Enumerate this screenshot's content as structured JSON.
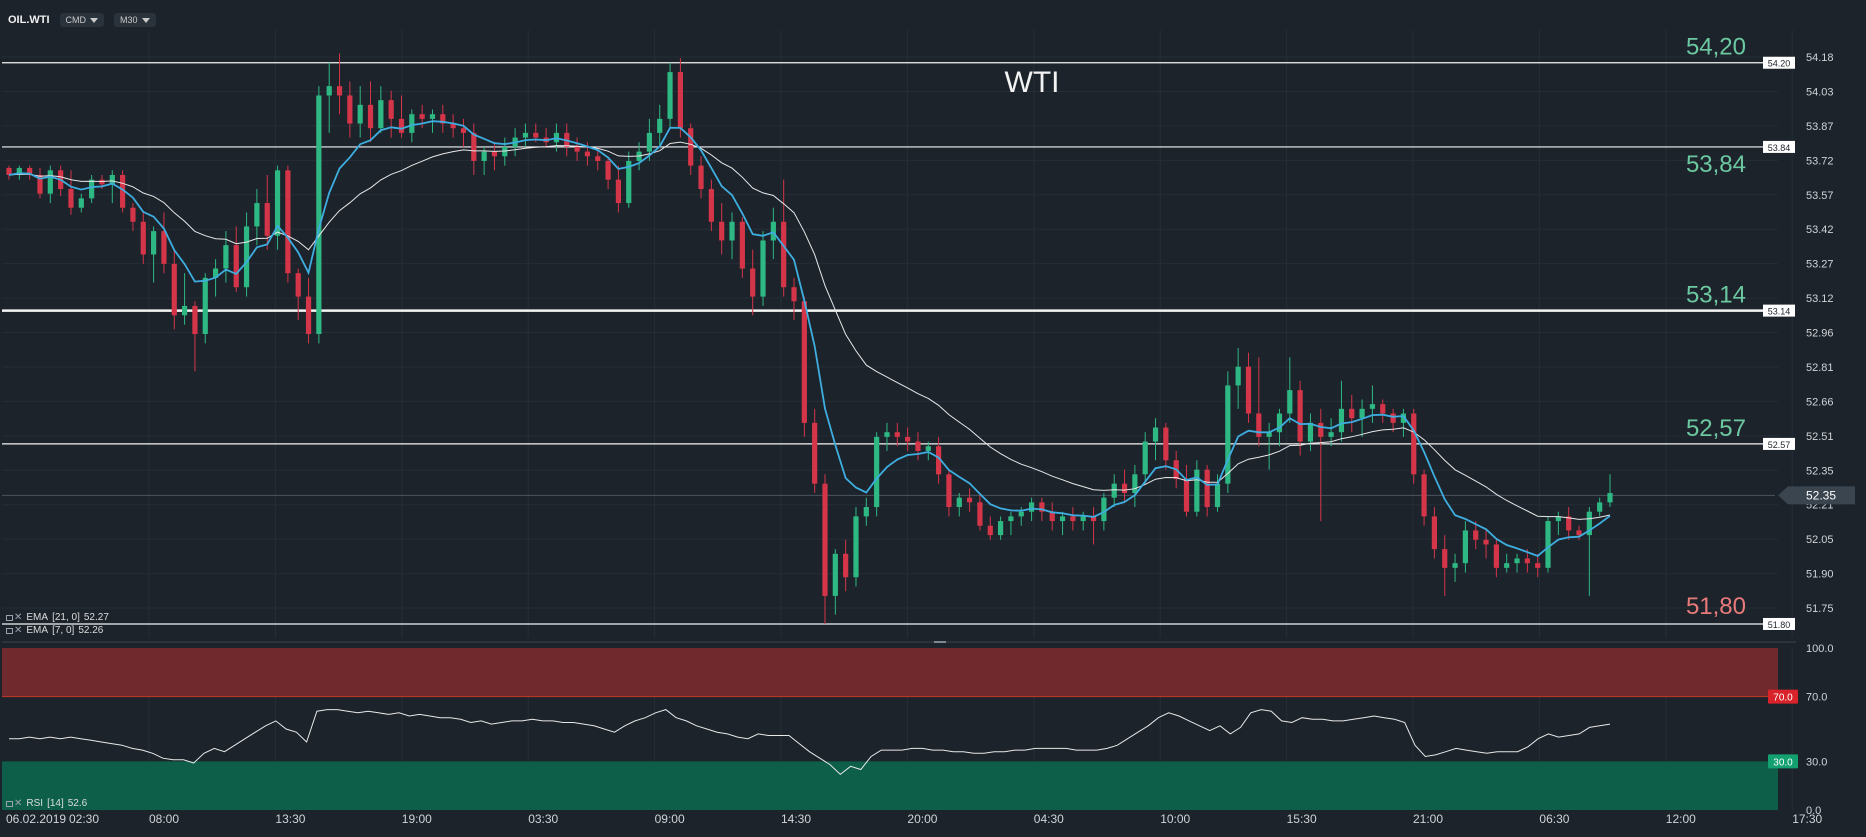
{
  "toolbar": {
    "symbol": "OIL.WTI",
    "mode": "CMD",
    "timeframe": "M30"
  },
  "legends": {
    "ema21": {
      "name": "EMA",
      "params": "[21, 0]",
      "value": "52.27"
    },
    "ema7": {
      "name": "EMA",
      "params": "[7, 0]",
      "value": "52.26"
    },
    "rsi": {
      "name": "RSI",
      "params": "[14]",
      "value": "52.6"
    }
  },
  "colors": {
    "background": "#1c232b",
    "bull": "#2eb883",
    "bear": "#d53548",
    "ema_fast": "#3eaee0",
    "ema_slow": "#e8e8e8",
    "level_label_green": "#6cc8a0",
    "level_label_red": "#e87a7a",
    "overbought_zone": "#7a2a2e",
    "oversold_zone": "#0e5f4a"
  },
  "chart_data": [
    {
      "type": "candlestick",
      "title": "WTI",
      "x_ticks": [
        "06.02.2019",
        "02:30",
        "08:00",
        "13:30",
        "19:00",
        "03:30",
        "09:00",
        "14:30",
        "20:00",
        "04:30",
        "10:00",
        "15:30",
        "21:00",
        "06:30",
        "12:00",
        "17:30"
      ],
      "y_ticks": [
        "54.18",
        "54.03",
        "53.87",
        "53.72",
        "53.57",
        "53.42",
        "53.27",
        "53.12",
        "52.96",
        "52.81",
        "52.66",
        "52.51",
        "52.35",
        "52.21",
        "52.05",
        "51.90",
        "51.75"
      ],
      "ylim": [
        51.74,
        54.34
      ],
      "current_price": "52.35",
      "levels": [
        {
          "value": 54.2,
          "axis_label": "54.20",
          "big_label": "54,20",
          "color": "green",
          "weight": "thin"
        },
        {
          "value": 53.84,
          "axis_label": "53.84",
          "big_label": "53,84",
          "color": "green",
          "weight": "thin"
        },
        {
          "value": 53.14,
          "axis_label": "53.14",
          "big_label": "53,14",
          "color": "green",
          "weight": "bold"
        },
        {
          "value": 52.57,
          "axis_label": "52.57",
          "big_label": "52,57",
          "color": "green",
          "weight": "thin"
        },
        {
          "value": 51.8,
          "axis_label": "51.80",
          "big_label": "51,80",
          "color": "red",
          "weight": "thin"
        }
      ],
      "candles": [
        [
          53.75,
          53.76,
          53.7,
          53.72
        ],
        [
          53.72,
          53.76,
          53.7,
          53.75
        ],
        [
          53.75,
          53.76,
          53.7,
          53.72
        ],
        [
          53.72,
          53.75,
          53.62,
          53.64
        ],
        [
          53.64,
          53.76,
          53.6,
          53.74
        ],
        [
          53.74,
          53.76,
          53.63,
          53.66
        ],
        [
          53.66,
          53.74,
          53.55,
          53.58
        ],
        [
          53.58,
          53.64,
          53.56,
          53.62
        ],
        [
          53.62,
          53.72,
          53.6,
          53.7
        ],
        [
          53.7,
          53.72,
          53.66,
          53.68
        ],
        [
          53.68,
          53.74,
          53.6,
          53.72
        ],
        [
          53.72,
          53.74,
          53.56,
          53.58
        ],
        [
          53.58,
          53.6,
          53.48,
          53.52
        ],
        [
          53.52,
          53.56,
          53.34,
          53.38
        ],
        [
          53.38,
          53.5,
          53.26,
          53.48
        ],
        [
          53.48,
          53.56,
          53.3,
          53.34
        ],
        [
          53.34,
          53.4,
          53.06,
          53.12
        ],
        [
          53.12,
          53.3,
          53.08,
          53.16
        ],
        [
          53.16,
          53.18,
          52.88,
          53.04
        ],
        [
          53.04,
          53.3,
          53.0,
          53.28
        ],
        [
          53.28,
          53.36,
          53.2,
          53.32
        ],
        [
          53.32,
          53.48,
          53.26,
          53.42
        ],
        [
          53.42,
          53.5,
          53.22,
          53.24
        ],
        [
          53.24,
          53.56,
          53.2,
          53.5
        ],
        [
          53.5,
          53.66,
          53.42,
          53.6
        ],
        [
          53.6,
          53.72,
          53.4,
          53.46
        ],
        [
          53.46,
          53.76,
          53.4,
          53.74
        ],
        [
          53.74,
          53.76,
          53.26,
          53.3
        ],
        [
          53.3,
          53.32,
          53.1,
          53.2
        ],
        [
          53.2,
          53.28,
          53.0,
          53.04
        ],
        [
          53.04,
          54.1,
          53.0,
          54.06
        ],
        [
          54.06,
          54.2,
          53.9,
          54.1
        ],
        [
          54.1,
          54.24,
          53.98,
          54.06
        ],
        [
          54.06,
          54.12,
          53.88,
          53.94
        ],
        [
          53.94,
          54.1,
          53.88,
          54.02
        ],
        [
          54.02,
          54.12,
          53.86,
          53.92
        ],
        [
          53.92,
          54.1,
          53.9,
          54.04
        ],
        [
          54.04,
          54.08,
          53.88,
          53.96
        ],
        [
          53.96,
          54.06,
          53.88,
          53.9
        ],
        [
          53.9,
          54.0,
          53.86,
          53.98
        ],
        [
          53.98,
          54.02,
          53.92,
          53.96
        ],
        [
          53.96,
          54.0,
          53.9,
          53.98
        ],
        [
          53.98,
          54.02,
          53.9,
          53.94
        ],
        [
          53.94,
          53.98,
          53.88,
          53.92
        ],
        [
          53.92,
          53.96,
          53.84,
          53.9
        ],
        [
          53.9,
          53.94,
          53.72,
          53.78
        ],
        [
          53.78,
          53.84,
          53.72,
          53.82
        ],
        [
          53.82,
          53.86,
          53.74,
          53.8
        ],
        [
          53.8,
          53.88,
          53.76,
          53.84
        ],
        [
          53.84,
          53.92,
          53.8,
          53.88
        ],
        [
          53.88,
          53.94,
          53.84,
          53.9
        ],
        [
          53.9,
          53.94,
          53.86,
          53.88
        ],
        [
          53.88,
          53.92,
          53.84,
          53.86
        ],
        [
          53.86,
          53.94,
          53.82,
          53.9
        ],
        [
          53.9,
          53.94,
          53.8,
          53.84
        ],
        [
          53.84,
          53.88,
          53.78,
          53.82
        ],
        [
          53.82,
          53.86,
          53.76,
          53.8
        ],
        [
          53.8,
          53.84,
          53.74,
          53.78
        ],
        [
          53.78,
          53.8,
          53.66,
          53.7
        ],
        [
          53.7,
          53.76,
          53.56,
          53.6
        ],
        [
          53.6,
          53.82,
          53.58,
          53.78
        ],
        [
          53.78,
          53.86,
          53.74,
          53.82
        ],
        [
          53.82,
          53.96,
          53.78,
          53.9
        ],
        [
          53.9,
          54.02,
          53.84,
          53.96
        ],
        [
          53.96,
          54.2,
          53.92,
          54.16
        ],
        [
          54.16,
          54.22,
          53.88,
          53.92
        ],
        [
          53.92,
          53.94,
          53.72,
          53.76
        ],
        [
          53.76,
          53.8,
          53.62,
          53.66
        ],
        [
          53.66,
          53.7,
          53.48,
          53.52
        ],
        [
          53.52,
          53.6,
          53.38,
          53.44
        ],
        [
          53.44,
          53.56,
          53.36,
          53.52
        ],
        [
          53.52,
          53.54,
          53.28,
          53.32
        ],
        [
          53.32,
          53.4,
          53.12,
          53.2
        ],
        [
          53.2,
          53.48,
          53.16,
          53.44
        ],
        [
          53.44,
          53.58,
          53.36,
          53.52
        ],
        [
          53.52,
          53.7,
          53.2,
          53.24
        ],
        [
          53.24,
          53.28,
          53.1,
          53.18
        ],
        [
          53.18,
          53.2,
          52.6,
          52.66
        ],
        [
          52.66,
          52.72,
          52.36,
          52.4
        ],
        [
          52.4,
          52.44,
          51.8,
          51.92
        ],
        [
          51.92,
          52.12,
          51.84,
          52.1
        ],
        [
          52.1,
          52.16,
          51.94,
          52.0
        ],
        [
          52.0,
          52.3,
          51.96,
          52.26
        ],
        [
          52.26,
          52.34,
          52.22,
          52.3
        ],
        [
          52.3,
          52.62,
          52.26,
          52.6
        ],
        [
          52.6,
          52.66,
          52.54,
          52.62
        ],
        [
          52.62,
          52.66,
          52.56,
          52.6
        ],
        [
          52.6,
          52.64,
          52.54,
          52.58
        ],
        [
          52.58,
          52.62,
          52.5,
          52.54
        ],
        [
          52.54,
          52.58,
          52.5,
          52.56
        ],
        [
          52.56,
          52.6,
          52.4,
          52.44
        ],
        [
          52.44,
          52.46,
          52.26,
          52.3
        ],
        [
          52.3,
          52.36,
          52.26,
          52.34
        ],
        [
          52.34,
          52.38,
          52.28,
          52.32
        ],
        [
          52.32,
          52.36,
          52.2,
          52.22
        ],
        [
          52.22,
          52.26,
          52.16,
          52.18
        ],
        [
          52.18,
          52.26,
          52.16,
          52.24
        ],
        [
          52.24,
          52.28,
          52.18,
          52.26
        ],
        [
          52.26,
          52.3,
          52.22,
          52.28
        ],
        [
          52.28,
          52.34,
          52.24,
          52.32
        ],
        [
          52.32,
          52.34,
          52.24,
          52.28
        ],
        [
          52.28,
          52.32,
          52.2,
          52.24
        ],
        [
          52.24,
          52.28,
          52.18,
          52.26
        ],
        [
          52.26,
          52.3,
          52.2,
          52.24
        ],
        [
          52.24,
          52.28,
          52.2,
          52.26
        ],
        [
          52.26,
          52.3,
          52.14,
          52.24
        ],
        [
          52.24,
          52.36,
          52.2,
          52.34
        ],
        [
          52.34,
          52.44,
          52.3,
          52.4
        ],
        [
          52.4,
          52.46,
          52.32,
          52.36
        ],
        [
          52.36,
          52.48,
          52.3,
          52.44
        ],
        [
          52.44,
          52.62,
          52.4,
          52.58
        ],
        [
          52.58,
          52.68,
          52.5,
          52.64
        ],
        [
          52.64,
          52.66,
          52.46,
          52.5
        ],
        [
          52.5,
          52.54,
          52.38,
          52.42
        ],
        [
          52.42,
          52.48,
          52.26,
          52.28
        ],
        [
          52.28,
          52.5,
          52.26,
          52.46
        ],
        [
          52.46,
          52.48,
          52.26,
          52.3
        ],
        [
          52.3,
          52.44,
          52.28,
          52.4
        ],
        [
          52.4,
          52.88,
          52.36,
          52.82
        ],
        [
          52.82,
          52.98,
          52.72,
          52.9
        ],
        [
          52.9,
          52.96,
          52.66,
          52.7
        ],
        [
          52.7,
          52.94,
          52.56,
          52.6
        ],
        [
          52.6,
          52.66,
          52.46,
          52.62
        ],
        [
          52.62,
          52.72,
          52.56,
          52.7
        ],
        [
          52.7,
          52.94,
          52.66,
          52.8
        ],
        [
          52.8,
          52.84,
          52.52,
          52.58
        ],
        [
          52.58,
          52.7,
          52.54,
          52.66
        ],
        [
          52.66,
          52.72,
          52.24,
          52.6
        ],
        [
          52.6,
          52.68,
          52.56,
          52.62
        ],
        [
          52.62,
          52.84,
          52.58,
          52.72
        ],
        [
          52.72,
          52.78,
          52.62,
          52.68
        ],
        [
          52.68,
          52.76,
          52.6,
          52.72
        ],
        [
          52.72,
          52.82,
          52.66,
          52.74
        ],
        [
          52.74,
          52.76,
          52.66,
          52.7
        ],
        [
          52.7,
          52.72,
          52.62,
          52.66
        ],
        [
          52.66,
          52.72,
          52.6,
          52.7
        ],
        [
          52.7,
          52.72,
          52.4,
          52.44
        ],
        [
          52.44,
          52.46,
          52.22,
          52.26
        ],
        [
          52.26,
          52.3,
          52.08,
          52.12
        ],
        [
          52.12,
          52.18,
          51.92,
          52.04
        ],
        [
          52.04,
          52.1,
          51.98,
          52.06
        ],
        [
          52.06,
          52.24,
          52.02,
          52.2
        ],
        [
          52.2,
          52.24,
          52.12,
          52.16
        ],
        [
          52.16,
          52.2,
          52.08,
          52.14
        ],
        [
          52.14,
          52.16,
          52.0,
          52.04
        ],
        [
          52.04,
          52.1,
          52.02,
          52.06
        ],
        [
          52.06,
          52.1,
          52.02,
          52.08
        ],
        [
          52.08,
          52.12,
          52.02,
          52.06
        ],
        [
          52.06,
          52.1,
          52.0,
          52.04
        ],
        [
          52.04,
          52.26,
          52.02,
          52.24
        ],
        [
          52.24,
          52.28,
          52.18,
          52.26
        ],
        [
          52.26,
          52.3,
          52.16,
          52.2
        ],
        [
          52.2,
          52.22,
          52.16,
          52.18
        ],
        [
          52.18,
          52.3,
          51.92,
          52.28
        ],
        [
          52.28,
          52.34,
          52.26,
          52.32
        ],
        [
          52.32,
          52.44,
          52.3,
          52.36
        ]
      ]
    },
    {
      "type": "line",
      "title": "",
      "ylim": [
        0,
        100
      ],
      "y_ticks": [
        "100.0",
        "70.0",
        "30.0",
        "0.0"
      ],
      "zones": {
        "overbought": 70.0,
        "oversold": 30.0
      },
      "overbought_label": "70.0",
      "oversold_label": "30.0",
      "rsi_values": [
        44,
        44,
        45,
        44,
        45,
        44,
        45,
        44,
        43,
        42,
        41,
        40,
        38,
        37,
        35,
        32,
        31,
        31,
        29,
        35,
        38,
        36,
        40,
        44,
        48,
        52,
        55,
        50,
        48,
        42,
        61,
        62,
        62,
        61,
        60,
        61,
        60,
        59,
        60,
        58,
        59,
        58,
        57,
        57,
        56,
        54,
        55,
        53,
        54,
        55,
        55,
        56,
        55,
        55,
        54,
        54,
        53,
        52,
        50,
        48,
        52,
        55,
        57,
        60,
        62,
        57,
        55,
        52,
        50,
        48,
        47,
        45,
        44,
        47,
        46,
        46,
        46,
        41,
        36,
        32,
        28,
        22,
        27,
        25,
        33,
        37,
        37,
        37,
        38,
        38,
        37,
        37,
        36,
        36,
        35,
        35,
        36,
        36,
        37,
        37,
        38,
        38,
        38,
        38,
        37,
        37,
        37,
        38,
        40,
        44,
        48,
        52,
        57,
        60,
        58,
        55,
        52,
        49,
        52,
        47,
        51,
        60,
        62,
        61,
        55,
        54,
        57,
        56,
        56,
        55,
        55,
        56,
        57,
        58,
        57,
        56,
        54,
        40,
        33,
        34,
        36,
        38,
        37,
        36,
        35,
        36,
        36,
        36,
        39,
        44,
        47,
        45,
        46,
        47,
        51,
        52,
        53
      ]
    }
  ]
}
